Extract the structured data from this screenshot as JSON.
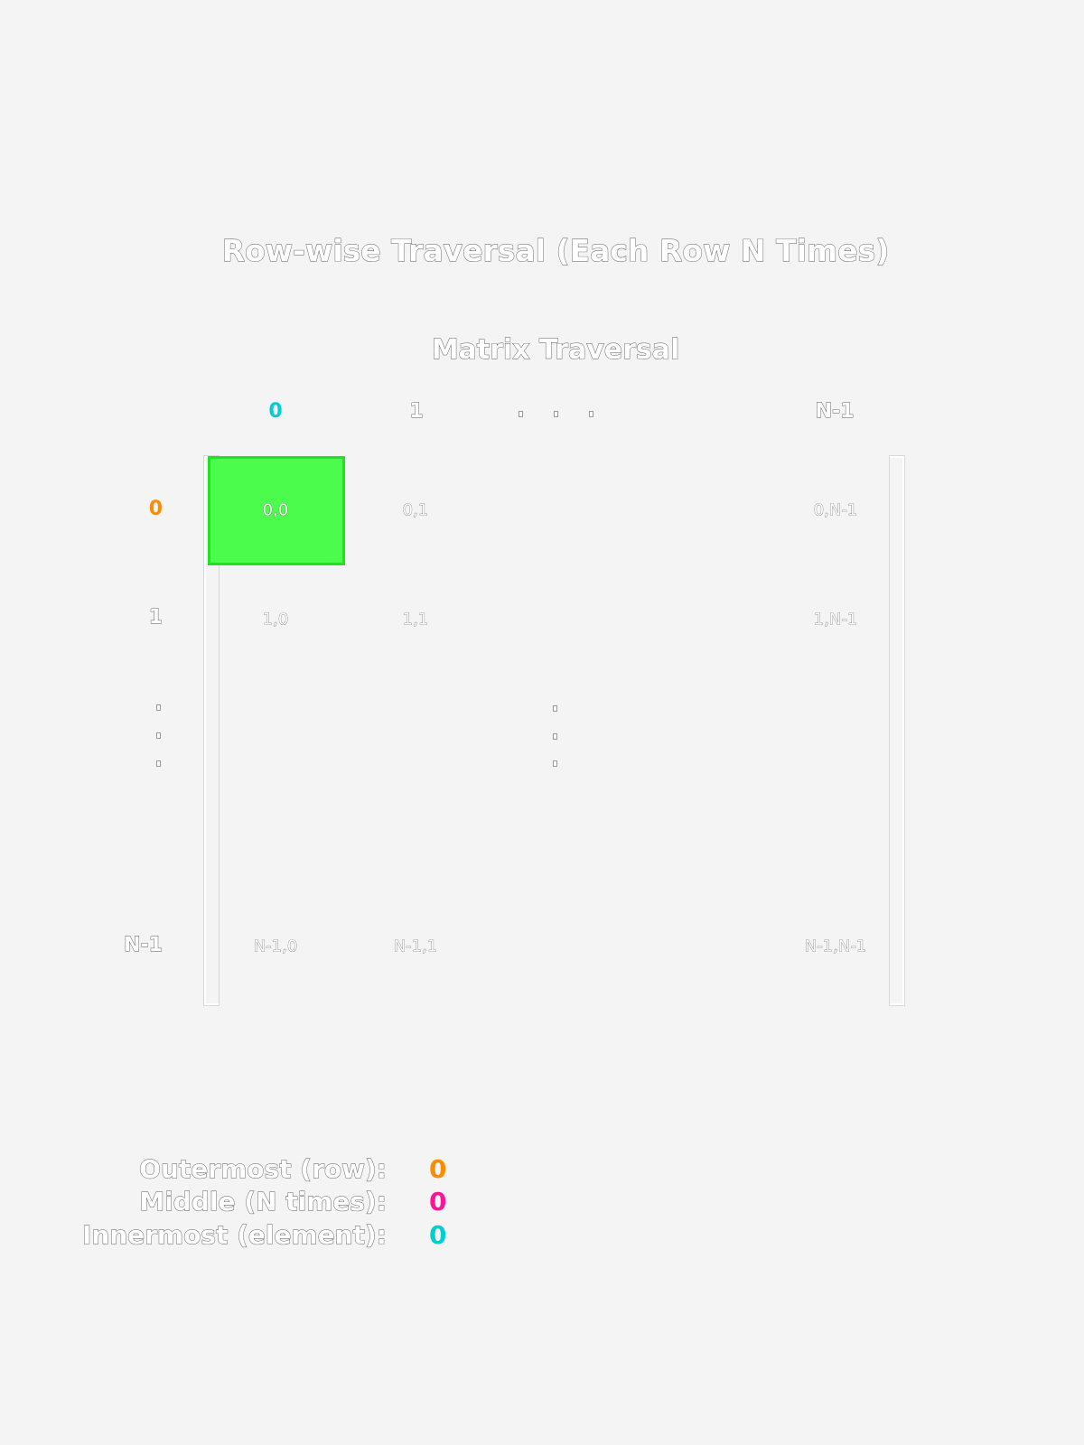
{
  "title": "Row-wise Traversal (Each Row N Times)",
  "subtitle": "Matrix Traversal",
  "columns": [
    "0",
    "1",
    "N-1"
  ],
  "rows": [
    "0",
    "1",
    "N-1"
  ],
  "cells": {
    "r0": [
      "0,0",
      "0,1",
      "0,N-1"
    ],
    "r1": [
      "1,0",
      "1,1",
      "1,N-1"
    ],
    "rN": [
      "N-1,0",
      "N-1,1",
      "N-1,N-1"
    ]
  },
  "highlighted_cell": "0,0",
  "legend": [
    {
      "label": "Outermost (row):",
      "value": "0",
      "color": "#ff8c00"
    },
    {
      "label": "Middle (N times):",
      "value": "0",
      "color": "#ff1493"
    },
    {
      "label": "Innermost (element):",
      "value": "0",
      "color": "#00ced1"
    }
  ],
  "colors": {
    "outer": "#ff8c00",
    "middle": "#ff1493",
    "inner": "#00ced1",
    "highlight": "#4cfc4c",
    "background": "#f4f4f4"
  }
}
